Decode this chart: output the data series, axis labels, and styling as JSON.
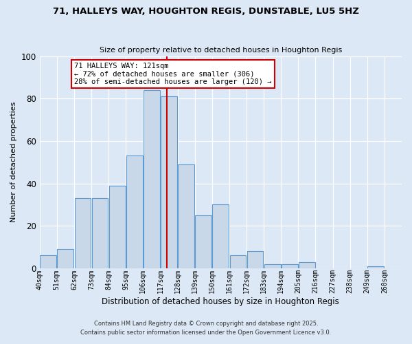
{
  "title": "71, HALLEYS WAY, HOUGHTON REGIS, DUNSTABLE, LU5 5HZ",
  "subtitle": "Size of property relative to detached houses in Houghton Regis",
  "xlabel": "Distribution of detached houses by size in Houghton Regis",
  "ylabel": "Number of detached properties",
  "bin_labels": [
    "40sqm",
    "51sqm",
    "62sqm",
    "73sqm",
    "84sqm",
    "95sqm",
    "106sqm",
    "117sqm",
    "128sqm",
    "139sqm",
    "150sqm",
    "161sqm",
    "172sqm",
    "183sqm",
    "194sqm",
    "205sqm",
    "216sqm",
    "227sqm",
    "238sqm",
    "249sqm",
    "260sqm"
  ],
  "bin_edges": [
    40,
    51,
    62,
    73,
    84,
    95,
    106,
    117,
    128,
    139,
    150,
    161,
    172,
    183,
    194,
    205,
    216,
    227,
    238,
    249,
    260
  ],
  "counts": [
    6,
    9,
    33,
    33,
    39,
    53,
    84,
    81,
    49,
    25,
    30,
    6,
    8,
    2,
    2,
    3,
    0,
    0,
    0,
    1,
    0
  ],
  "bar_color": "#c8d8e8",
  "bar_edge_color": "#5b9bd5",
  "marker_value": 121,
  "marker_color": "#cc0000",
  "annotation_title": "71 HALLEYS WAY: 121sqm",
  "annotation_line1": "← 72% of detached houses are smaller (306)",
  "annotation_line2": "28% of semi-detached houses are larger (120) →",
  "annotation_box_color": "#ffffff",
  "annotation_box_edge": "#cc0000",
  "ylim": [
    0,
    100
  ],
  "yticks": [
    0,
    20,
    40,
    60,
    80,
    100
  ],
  "bg_color": "#dce8f5",
  "footnote1": "Contains HM Land Registry data © Crown copyright and database right 2025.",
  "footnote2": "Contains public sector information licensed under the Open Government Licence v3.0."
}
